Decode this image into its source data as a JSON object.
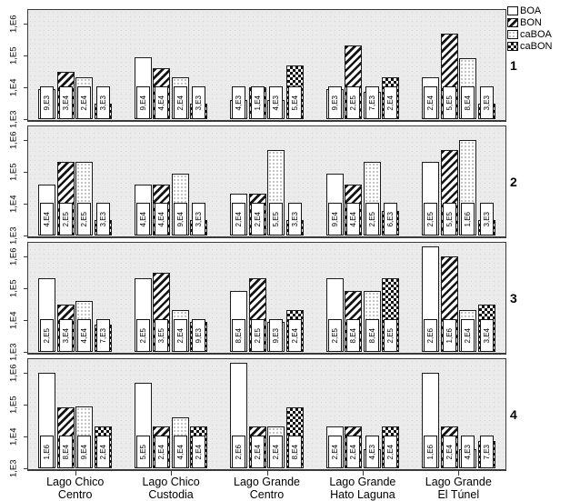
{
  "legend": {
    "items": [
      {
        "label": "BOA",
        "pattern": "plain"
      },
      {
        "label": "BON",
        "pattern": "diagonal-hatch"
      },
      {
        "label": "caBOA",
        "pattern": "dotted"
      },
      {
        "label": "caBON",
        "pattern": "checkered"
      }
    ]
  },
  "chart_data": {
    "type": "bar",
    "title": "",
    "xlabel": "",
    "ylabel": "",
    "y_scale": "log",
    "ylim_exponents": [
      3,
      6.5
    ],
    "y_tick_labels": [
      "1,E3",
      "1,E4",
      "1,E5",
      "1,E6"
    ],
    "grid": false,
    "legend_position": "top-right",
    "series_names": [
      "BOA",
      "BON",
      "caBOA",
      "caBON"
    ],
    "categories": [
      {
        "line1": "Lago Chico",
        "line2": "Centro"
      },
      {
        "line1": "Lago Chico",
        "line2": "Custodia"
      },
      {
        "line1": "Lago Grande",
        "line2": "Centro"
      },
      {
        "line1": "Lago Grande",
        "line2": "Hato Laguna"
      },
      {
        "line1": "Lago Grande",
        "line2": "El Túnel"
      }
    ],
    "panels": [
      {
        "label": "1",
        "values": [
          [
            9000,
            30000,
            20000,
            3000
          ],
          [
            90000,
            40000,
            20000,
            3000
          ],
          [
            4000,
            10000,
            4000,
            50000
          ],
          [
            9000,
            200000,
            7000,
            20000
          ],
          [
            20000,
            500000,
            80000,
            3000
          ]
        ],
        "bar_labels": [
          [
            "9,E3",
            "3,E4",
            "2,E4",
            "3,E3"
          ],
          [
            "9,E4",
            "4,E4",
            "2,E4",
            "3,E3"
          ],
          [
            "4,E3",
            "1,E4",
            "4,E3",
            "5,E4"
          ],
          [
            "9,E3",
            "2,E5",
            "7,E3",
            "2,E4"
          ],
          [
            "2,E4",
            "5,E5",
            "8,E4",
            "3,E3"
          ]
        ]
      },
      {
        "label": "2",
        "values": [
          [
            40000,
            200000,
            200000,
            3000
          ],
          [
            40000,
            40000,
            90000,
            3000
          ],
          [
            20000,
            20000,
            500000,
            3000
          ],
          [
            90000,
            40000,
            200000,
            6000
          ],
          [
            200000,
            500000,
            1000000,
            3000
          ]
        ],
        "bar_labels": [
          [
            "4,E4",
            "2,E5",
            "2,E5",
            "3,E3"
          ],
          [
            "4,E4",
            "4,E4",
            "9,E4",
            "3,E3"
          ],
          [
            "2,E4",
            "2,E4",
            "5,E5",
            "3,E3"
          ],
          [
            "9,E4",
            "4,E4",
            "2,E5",
            "6,E3"
          ],
          [
            "2,E5",
            "5,E5",
            "1,E6",
            "3,E3"
          ]
        ]
      },
      {
        "label": "3",
        "values": [
          [
            200000,
            30000,
            40000,
            7000
          ],
          [
            200000,
            300000,
            20000,
            9000
          ],
          [
            80000,
            200000,
            9000,
            20000
          ],
          [
            200000,
            80000,
            80000,
            200000
          ],
          [
            2000000,
            1000000,
            20000,
            30000
          ]
        ],
        "bar_labels": [
          [
            "2,E5",
            "3,E4",
            "4,E4",
            "7,E3"
          ],
          [
            "2,E5",
            "3,E5",
            "2,E4",
            "9,E3"
          ],
          [
            "8,E4",
            "2,E5",
            "9,E3",
            "2,E4"
          ],
          [
            "2,E5",
            "8,E4",
            "8,E4",
            "2,E5"
          ],
          [
            "2,E6",
            "1,E6",
            "2,E4",
            "3,E4"
          ]
        ]
      },
      {
        "label": "4",
        "values": [
          [
            1000000,
            80000,
            90000,
            20000
          ],
          [
            500000,
            20000,
            40000,
            20000
          ],
          [
            2000000,
            20000,
            20000,
            80000
          ],
          [
            20000,
            20000,
            4000,
            20000
          ],
          [
            1000000,
            20000,
            4000,
            7000
          ]
        ],
        "bar_labels": [
          [
            "1,E6",
            "8,E4",
            "9,E4",
            "2,E4"
          ],
          [
            "5,E5",
            "2,E4",
            "4,E4",
            "2,E4"
          ],
          [
            "2,E6",
            "2,E4",
            "2,E4",
            "8,E4"
          ],
          [
            "2,E4",
            "2,E4",
            "4,E3",
            "2,E4"
          ],
          [
            "1,E6",
            "2,E4",
            "4,E3",
            "7,E3"
          ]
        ]
      }
    ]
  }
}
